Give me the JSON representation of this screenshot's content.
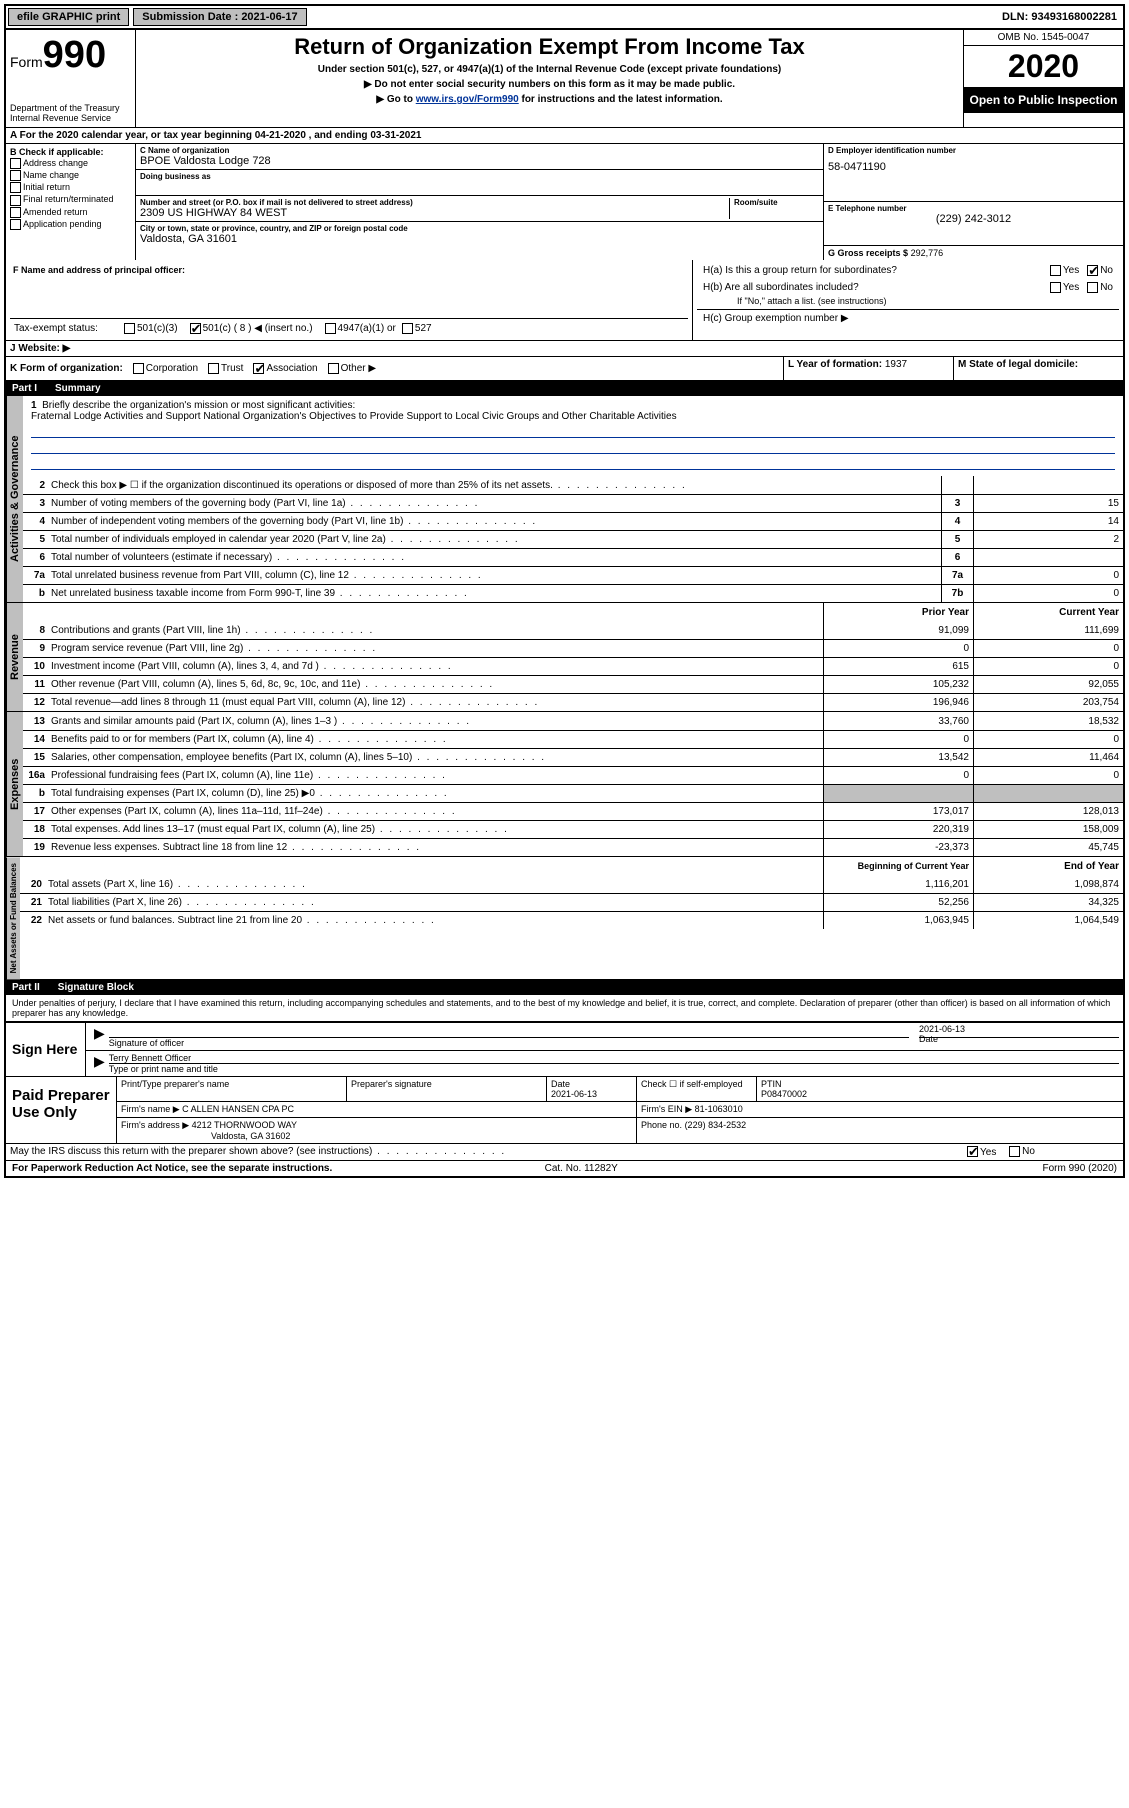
{
  "topbar": {
    "efile": "efile GRAPHIC print",
    "sub_lbl": "Submission Date : 2021-06-17",
    "dln": "DLN: 93493168002281"
  },
  "header": {
    "form_word": "Form",
    "form_num": "990",
    "dept": "Department of the Treasury\nInternal Revenue Service",
    "title": "Return of Organization Exempt From Income Tax",
    "sub1": "Under section 501(c), 527, or 4947(a)(1) of the Internal Revenue Code (except private foundations)",
    "sub2": "▶ Do not enter social security numbers on this form as it may be made public.",
    "sub3_pre": "▶ Go to ",
    "sub3_link": "www.irs.gov/Form990",
    "sub3_post": " for instructions and the latest information.",
    "omb": "OMB No. 1545-0047",
    "year": "2020",
    "public": "Open to Public Inspection"
  },
  "period": "A For the 2020 calendar year, or tax year beginning 04-21-2020    , and ending 03-31-2021",
  "boxB": {
    "hdr": "B Check if applicable:",
    "items": [
      "Address change",
      "Name change",
      "Initial return",
      "Final return/terminated",
      "Amended return",
      "Application pending"
    ]
  },
  "boxC": {
    "name_lbl": "C Name of organization",
    "name": "BPOE Valdosta Lodge 728",
    "dba_lbl": "Doing business as",
    "addr_lbl": "Number and street (or P.O. box if mail is not delivered to street address)",
    "room_lbl": "Room/suite",
    "addr": "2309 US HIGHWAY 84 WEST",
    "city_lbl": "City or town, state or province, country, and ZIP or foreign postal code",
    "city": "Valdosta, GA  31601"
  },
  "boxD": {
    "lbl": "D Employer identification number",
    "val": "58-0471190"
  },
  "boxE": {
    "lbl": "E Telephone number",
    "val": "(229) 242-3012"
  },
  "boxG": {
    "lbl": "G Gross receipts $",
    "val": "292,776"
  },
  "boxF": "F  Name and address of principal officer:",
  "boxH": {
    "a": "H(a)  Is this a group return for subordinates?",
    "a_yes": "Yes",
    "a_no": "No",
    "b": "H(b)  Are all subordinates included?",
    "b_note": "If \"No,\" attach a list. (see instructions)",
    "c": "H(c)  Group exemption number ▶"
  },
  "tax_status": {
    "lbl": "Tax-exempt status:",
    "o1": "501(c)(3)",
    "o2": "501(c) ( 8 ) ◀ (insert no.)",
    "o3": "4947(a)(1) or",
    "o4": "527"
  },
  "boxJ": "J   Website: ▶",
  "boxK": {
    "lbl": "K Form of organization:",
    "o1": "Corporation",
    "o2": "Trust",
    "o3": "Association",
    "o4": "Other ▶"
  },
  "boxL": {
    "lbl": "L Year of formation:",
    "val": "1937"
  },
  "boxM": "M State of legal domicile:",
  "part1": {
    "hdr": "Part I",
    "title": "Summary"
  },
  "mission": {
    "n": "1",
    "lbl": "Briefly describe the organization's mission or most significant activities:",
    "txt": "Fraternal Lodge Activities and Support National Organization's Objectives to Provide Support to Local Civic Groups and Other Charitable Activities"
  },
  "side": {
    "ag": "Activities & Governance",
    "rev": "Revenue",
    "exp": "Expenses",
    "na": "Net Assets or Fund Balances"
  },
  "lines_ag": [
    {
      "n": "2",
      "d": "Check this box ▶ ☐  if the organization discontinued its operations or disposed of more than 25% of its net assets."
    },
    {
      "n": "3",
      "d": "Number of voting members of the governing body (Part VI, line 1a)",
      "box": "3",
      "v": "15"
    },
    {
      "n": "4",
      "d": "Number of independent voting members of the governing body (Part VI, line 1b)",
      "box": "4",
      "v": "14"
    },
    {
      "n": "5",
      "d": "Total number of individuals employed in calendar year 2020 (Part V, line 2a)",
      "box": "5",
      "v": "2"
    },
    {
      "n": "6",
      "d": "Total number of volunteers (estimate if necessary)",
      "box": "6",
      "v": ""
    },
    {
      "n": "7a",
      "d": "Total unrelated business revenue from Part VIII, column (C), line 12",
      "box": "7a",
      "v": "0"
    },
    {
      "n": "b",
      "d": "Net unrelated business taxable income from Form 990-T, line 39",
      "box": "7b",
      "v": "0"
    }
  ],
  "col_py": "Prior Year",
  "col_cy": "Current Year",
  "lines_rev": [
    {
      "n": "8",
      "d": "Contributions and grants (Part VIII, line 1h)",
      "py": "91,099",
      "cy": "111,699"
    },
    {
      "n": "9",
      "d": "Program service revenue (Part VIII, line 2g)",
      "py": "0",
      "cy": "0"
    },
    {
      "n": "10",
      "d": "Investment income (Part VIII, column (A), lines 3, 4, and 7d )",
      "py": "615",
      "cy": "0"
    },
    {
      "n": "11",
      "d": "Other revenue (Part VIII, column (A), lines 5, 6d, 8c, 9c, 10c, and 11e)",
      "py": "105,232",
      "cy": "92,055"
    },
    {
      "n": "12",
      "d": "Total revenue—add lines 8 through 11 (must equal Part VIII, column (A), line 12)",
      "py": "196,946",
      "cy": "203,754"
    }
  ],
  "lines_exp": [
    {
      "n": "13",
      "d": "Grants and similar amounts paid (Part IX, column (A), lines 1–3 )",
      "py": "33,760",
      "cy": "18,532"
    },
    {
      "n": "14",
      "d": "Benefits paid to or for members (Part IX, column (A), line 4)",
      "py": "0",
      "cy": "0"
    },
    {
      "n": "15",
      "d": "Salaries, other compensation, employee benefits (Part IX, column (A), lines 5–10)",
      "py": "13,542",
      "cy": "11,464"
    },
    {
      "n": "16a",
      "d": "Professional fundraising fees (Part IX, column (A), line 11e)",
      "py": "0",
      "cy": "0"
    },
    {
      "n": "b",
      "d": "Total fundraising expenses (Part IX, column (D), line 25) ▶0",
      "shaded": true
    },
    {
      "n": "17",
      "d": "Other expenses (Part IX, column (A), lines 11a–11d, 11f–24e)",
      "py": "173,017",
      "cy": "128,013"
    },
    {
      "n": "18",
      "d": "Total expenses. Add lines 13–17 (must equal Part IX, column (A), line 25)",
      "py": "220,319",
      "cy": "158,009"
    },
    {
      "n": "19",
      "d": "Revenue less expenses. Subtract line 18 from line 12",
      "py": "-23,373",
      "cy": "45,745"
    }
  ],
  "col_boy": "Beginning of Current Year",
  "col_eoy": "End of Year",
  "lines_na": [
    {
      "n": "20",
      "d": "Total assets (Part X, line 16)",
      "py": "1,116,201",
      "cy": "1,098,874"
    },
    {
      "n": "21",
      "d": "Total liabilities (Part X, line 26)",
      "py": "52,256",
      "cy": "34,325"
    },
    {
      "n": "22",
      "d": "Net assets or fund balances. Subtract line 21 from line 20",
      "py": "1,063,945",
      "cy": "1,064,549"
    }
  ],
  "part2": {
    "hdr": "Part II",
    "title": "Signature Block"
  },
  "penalty": "Under penalties of perjury, I declare that I have examined this return, including accompanying schedules and statements, and to the best of my knowledge and belief, it is true, correct, and complete. Declaration of preparer (other than officer) is based on all information of which preparer has any knowledge.",
  "sign": {
    "here": "Sign Here",
    "sig_lbl": "Signature of officer",
    "date_lbl": "Date",
    "date": "2021-06-13",
    "name": "Terry Bennett  Officer",
    "name_lbl": "Type or print name and title"
  },
  "prep": {
    "title": "Paid Preparer Use Only",
    "h": [
      "Print/Type preparer's name",
      "Preparer's signature",
      "Date",
      "",
      "PTIN"
    ],
    "date": "2021-06-13",
    "self": "Check ☐ if self-employed",
    "ptin": "P08470002",
    "firm_lbl": "Firm's name   ▶",
    "firm": "C ALLEN HANSEN CPA PC",
    "ein_lbl": "Firm's EIN ▶",
    "ein": "81-1063010",
    "addr_lbl": "Firm's address ▶",
    "addr1": "4212 THORNWOOD WAY",
    "addr2": "Valdosta, GA  31602",
    "phone_lbl": "Phone no.",
    "phone": "(229) 834-2532"
  },
  "discuss": "May the IRS discuss this return with the preparer shown above? (see instructions)",
  "discuss_yes": "Yes",
  "discuss_no": "No",
  "footer": {
    "l": "For Paperwork Reduction Act Notice, see the separate instructions.",
    "m": "Cat. No. 11282Y",
    "r": "Form 990 (2020)"
  }
}
